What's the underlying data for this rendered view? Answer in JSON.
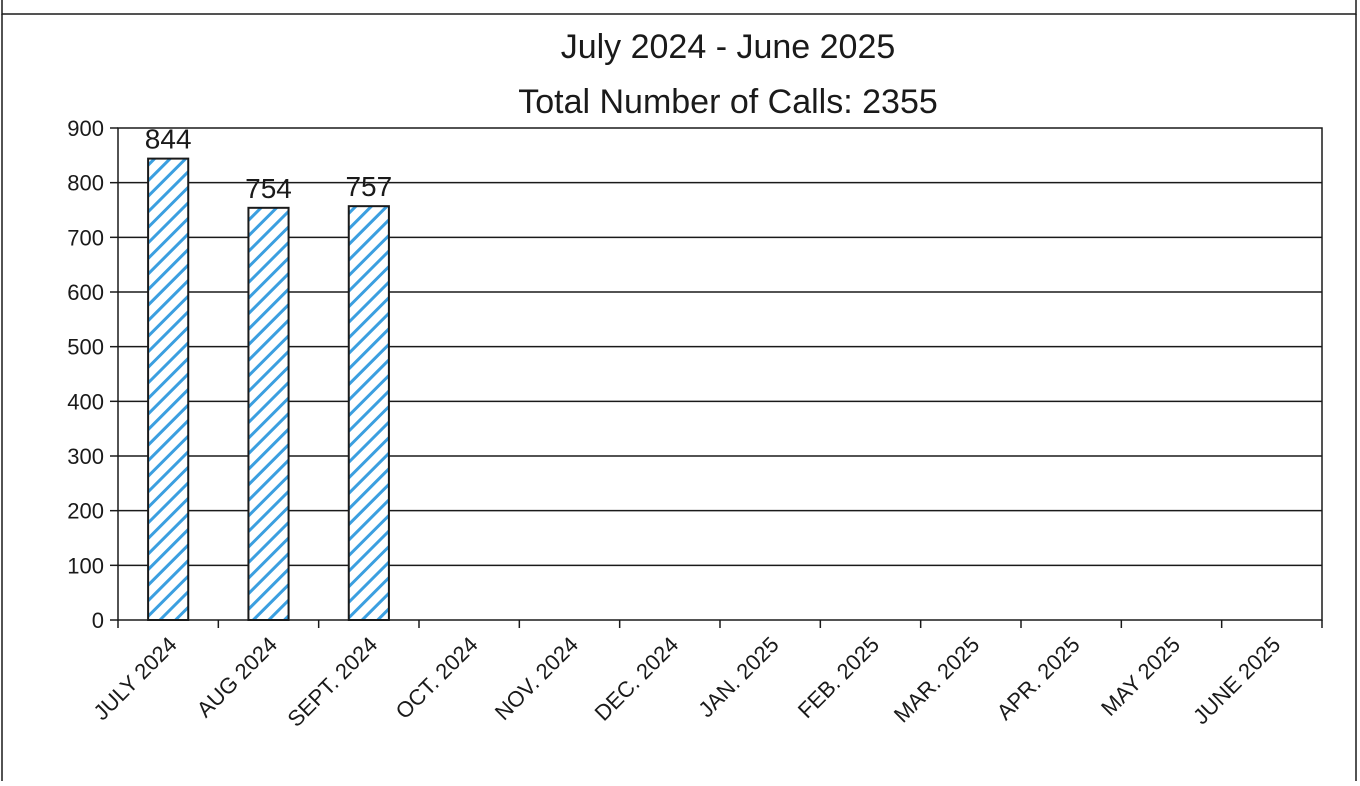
{
  "chart_data": {
    "type": "bar",
    "title": "July 2024 - June 2025",
    "subtitle": "Total Number of Calls: 2355",
    "xlabel": "",
    "ylabel": "",
    "ylim": [
      0,
      900
    ],
    "yticks": [
      0,
      100,
      200,
      300,
      400,
      500,
      600,
      700,
      800,
      900
    ],
    "grid": true,
    "legend": "none",
    "categories": [
      "JULY 2024",
      "AUG 2024",
      "SEPT. 2024",
      "OCT. 2024",
      "NOV. 2024",
      "DEC. 2024",
      "JAN. 2025",
      "FEB. 2025",
      "MAR. 2025",
      "APR. 2025",
      "MAY 2025",
      "JUNE 2025"
    ],
    "values": [
      844,
      754,
      757,
      null,
      null,
      null,
      null,
      null,
      null,
      null,
      null,
      null
    ],
    "data_labels": [
      "844",
      "754",
      "757",
      "",
      "",
      "",
      "",
      "",
      "",
      "",
      "",
      ""
    ],
    "colors": {
      "bar_fill": "#ffffff",
      "bar_hatch": "#3b9fe0",
      "bar_edge": "#1a1a1a",
      "grid": "#1a1a1a"
    }
  }
}
